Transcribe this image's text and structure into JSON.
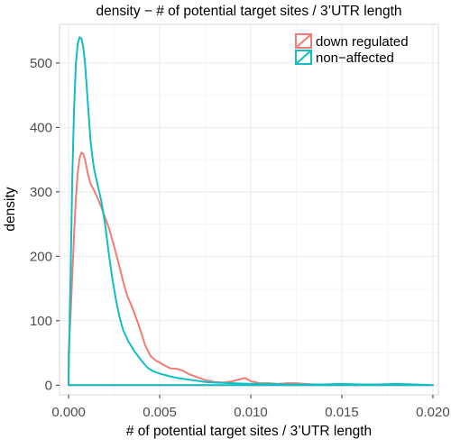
{
  "chart_data": {
    "type": "line",
    "title": "density − # of potential target sites / 3’UTR length",
    "xlabel": "# of potential target sites / 3’UTR length",
    "ylabel": "density",
    "xlim": [
      -0.0005,
      0.0203
    ],
    "ylim": [
      -15,
      560
    ],
    "x_ticks": [
      0,
      0.005,
      0.01,
      0.015,
      0.02
    ],
    "x_tick_labels": [
      "0.000",
      "0.005",
      "0.010",
      "0.015",
      "0.020"
    ],
    "y_ticks": [
      0,
      100,
      200,
      300,
      400,
      500
    ],
    "y_tick_labels": [
      "0",
      "100",
      "200",
      "300",
      "400",
      "500"
    ],
    "grid": true,
    "legend_position": "top-right",
    "series": [
      {
        "name": "down regulated",
        "color": "#f07c74",
        "x": [
          0,
          0.0001,
          0.0002,
          0.0003,
          0.0004,
          0.0005,
          0.0006,
          0.0007,
          0.0008,
          0.0009,
          0.001,
          0.0011,
          0.0012,
          0.0014,
          0.0016,
          0.0018,
          0.002,
          0.0022,
          0.0025,
          0.0028,
          0.003,
          0.0032,
          0.0035,
          0.0038,
          0.004,
          0.0042,
          0.0045,
          0.0048,
          0.005,
          0.0053,
          0.0056,
          0.006,
          0.0063,
          0.0066,
          0.007,
          0.0075,
          0.008,
          0.0085,
          0.009,
          0.0095,
          0.0097,
          0.01,
          0.0105,
          0.011,
          0.0115,
          0.012,
          0.0125,
          0.013,
          0.0135,
          0.014,
          0.015,
          0.016,
          0.017,
          0.018,
          0.0187,
          0.0195,
          0.02
        ],
        "y": [
          50,
          105,
          170,
          235,
          290,
          330,
          352,
          361,
          359,
          350,
          336,
          323,
          313,
          302,
          290,
          276,
          260,
          245,
          215,
          183,
          160,
          140,
          120,
          97,
          80,
          62,
          45,
          38,
          35,
          30,
          26,
          25,
          22,
          17,
          13,
          8,
          5,
          4,
          6,
          10,
          11,
          6,
          3,
          3,
          2,
          3,
          3,
          2,
          1,
          1,
          1,
          1,
          1,
          1,
          0,
          0,
          0
        ]
      },
      {
        "name": "non−affected",
        "color": "#10bec4",
        "x": [
          0,
          0.0001,
          0.0002,
          0.0003,
          0.0004,
          0.0005,
          0.0006,
          0.0007,
          0.0008,
          0.0009,
          0.001,
          0.0011,
          0.0012,
          0.0013,
          0.0014,
          0.0016,
          0.0018,
          0.002,
          0.0022,
          0.0024,
          0.0026,
          0.0028,
          0.003,
          0.0033,
          0.0036,
          0.004,
          0.0043,
          0.0046,
          0.005,
          0.0055,
          0.006,
          0.0065,
          0.007,
          0.0075,
          0.008,
          0.009,
          0.01,
          0.011,
          0.012,
          0.013,
          0.014,
          0.015,
          0.016,
          0.017,
          0.018,
          0.019,
          0.02
        ],
        "y": [
          15,
          160,
          320,
          430,
          500,
          530,
          540,
          538,
          525,
          500,
          460,
          420,
          380,
          355,
          335,
          310,
          285,
          250,
          205,
          165,
          132,
          105,
          85,
          67,
          53,
          38,
          28,
          22,
          18,
          14,
          11,
          9,
          7,
          5,
          4,
          3,
          2,
          2,
          1,
          1,
          1,
          2,
          1,
          1,
          2,
          1,
          0
        ]
      }
    ]
  }
}
